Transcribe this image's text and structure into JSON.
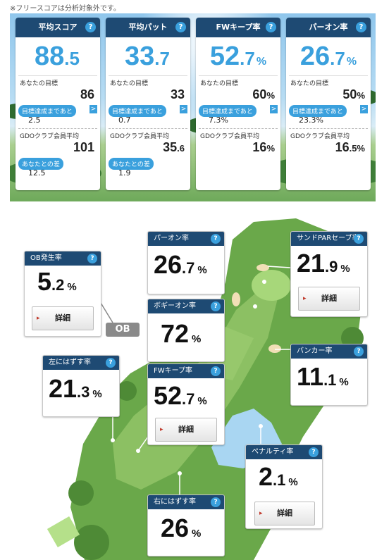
{
  "note": "※フリースコアは分析対象外です。",
  "summary_cards": [
    {
      "title": "平均スコア",
      "int": "88",
      "dec": ".5",
      "unit": "",
      "goal_label": "あなたの目標",
      "goal": "86",
      "goal_small": "",
      "gap_label": "目標達成まであと",
      "gap": "2.5",
      "avg_label": "GDOクラブ会員平均",
      "avg": "101",
      "avg_small": "",
      "diff_label": "あなたとの差",
      "diff": "12.5"
    },
    {
      "title": "平均パット",
      "int": "33",
      "dec": ".7",
      "unit": "",
      "goal_label": "あなたの目標",
      "goal": "33",
      "goal_small": "",
      "gap_label": "目標達成まであと",
      "gap": "0.7",
      "avg_label": "GDOクラブ会員平均",
      "avg": "35",
      "avg_small": ".6",
      "diff_label": "あなたとの差",
      "diff": "1.9"
    },
    {
      "title": "FWキープ率",
      "int": "52",
      "dec": ".7",
      "unit": "%",
      "goal_label": "あなたの目標",
      "goal": "60",
      "goal_small": "%",
      "gap_label": "目標達成まであと",
      "gap": "7.3%",
      "avg_label": "GDOクラブ会員平均",
      "avg": "16",
      "avg_small": "%",
      "diff_label": "",
      "diff": ""
    },
    {
      "title": "パーオン率",
      "int": "26",
      "dec": ".7",
      "unit": "%",
      "goal_label": "あなたの目標",
      "goal": "50",
      "goal_small": "%",
      "gap_label": "目標達成まであと",
      "gap": "23.3%",
      "avg_label": "GDOクラブ会員平均",
      "avg": "16",
      "avg_small": ".5%",
      "diff_label": "",
      "diff": ""
    }
  ],
  "help_icon": "?",
  "arrow_icon": ">",
  "map": {
    "ob_label": "OB",
    "detail_label": "詳細",
    "stats": {
      "par_on": {
        "title": "パーオン率",
        "int": "26",
        "dec": ".7",
        "unit": "%"
      },
      "sand_par_save": {
        "title": "サンドPARセーブ率",
        "int": "21",
        "dec": ".9",
        "unit": "%"
      },
      "ob_rate": {
        "title": "OB発生率",
        "int": "5",
        "dec": ".2",
        "unit": "%"
      },
      "bogey_on": {
        "title": "ボギーオン率",
        "int": "72",
        "dec": "",
        "unit": "%"
      },
      "bunker": {
        "title": "バンカー率",
        "int": "11",
        "dec": ".1",
        "unit": "%"
      },
      "miss_left": {
        "title": "左にはずす率",
        "int": "21",
        "dec": ".3",
        "unit": "%"
      },
      "fw_keep": {
        "title": "FWキープ率",
        "int": "52",
        "dec": ".7",
        "unit": "%"
      },
      "penalty": {
        "title": "ペナルティ率",
        "int": "2",
        "dec": ".1",
        "unit": "%"
      },
      "miss_right": {
        "title": "右にはずす率",
        "int": "26",
        "dec": "",
        "unit": "%"
      }
    }
  },
  "colors": {
    "header": "#1e4a73",
    "accent": "#3aa0dd",
    "green": "#6fae4c",
    "water": "#a9d6f2"
  }
}
